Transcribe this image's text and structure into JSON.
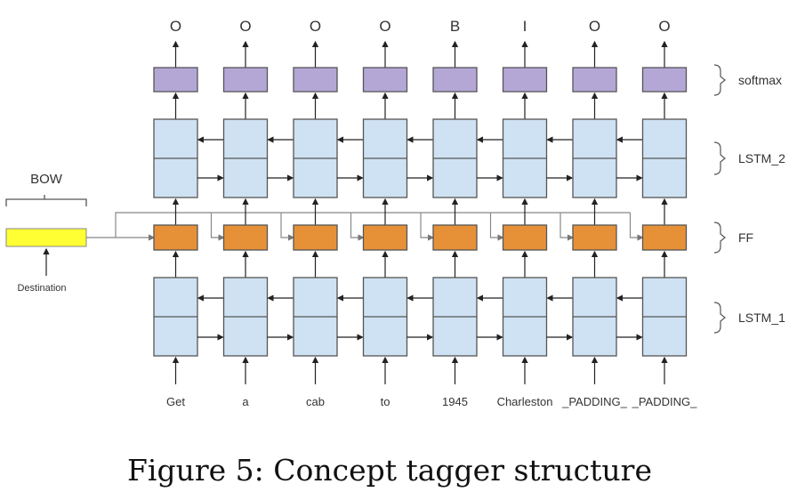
{
  "outputs": [
    "O",
    "O",
    "O",
    "O",
    "B",
    "I",
    "O",
    "O"
  ],
  "inputs": [
    "Get",
    "a",
    "cab",
    "to",
    "1945",
    "Charleston",
    "_PADDING_",
    "_PADDING_"
  ],
  "layers": {
    "softmax": "softmax",
    "lstm2": "LSTM_2",
    "ff": "FF",
    "lstm1": "LSTM_1"
  },
  "bow": {
    "label": "BOW",
    "input": "Destination"
  },
  "caption": "Figure 5: Concept tagger structure",
  "colors": {
    "softmax": "#b4a7d6",
    "lstm": "#cfe2f3",
    "ff": "#e69138",
    "bow": "#ffff33",
    "stroke": "#555555"
  }
}
